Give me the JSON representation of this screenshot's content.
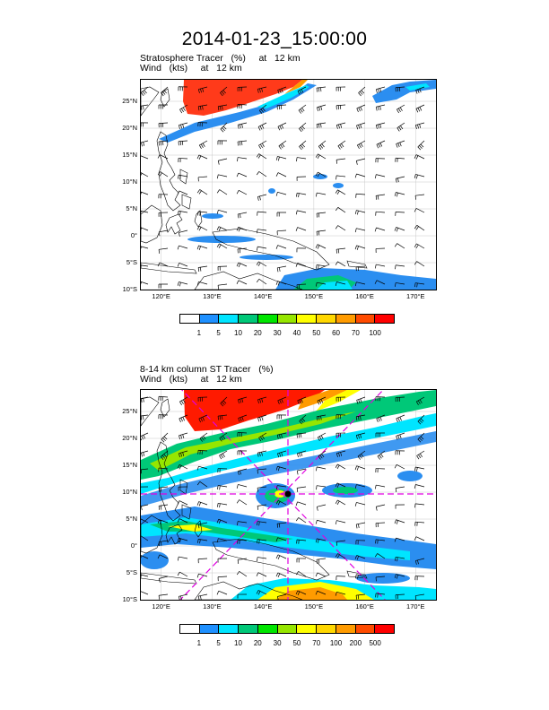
{
  "title": "2014-01-23_15:00:00",
  "panel1": {
    "line1": "Stratosphere Tracer   (%)     at   12 km",
    "line2": "Wind   (kts)     at   12 km",
    "colorbar_labels": [
      "1",
      "5",
      "10",
      "20",
      "30",
      "40",
      "50",
      "60",
      "70",
      "100"
    ],
    "colorbar_colors": [
      "#ffffff",
      "#1e90ff",
      "#00e5ff",
      "#00c878",
      "#00e600",
      "#96e600",
      "#ffff00",
      "#ffd700",
      "#ff9b00",
      "#ff4b00",
      "#ff0000"
    ]
  },
  "panel2": {
    "line1": "8-14 km column ST Tracer   (%)",
    "line2": "Wind   (kts)     at   12 km",
    "colorbar_labels": [
      "1",
      "5",
      "10",
      "20",
      "30",
      "50",
      "70",
      "100",
      "200",
      "500"
    ],
    "colorbar_colors": [
      "#ffffff",
      "#1e90ff",
      "#00e5ff",
      "#00c878",
      "#00e600",
      "#96e600",
      "#ffff00",
      "#ffd700",
      "#ff9b00",
      "#ff4b00",
      "#ff0000"
    ]
  },
  "lat_labels": [
    "25°N",
    "20°N",
    "15°N",
    "10°N",
    "5°N",
    "0°",
    "5°S",
    "10°S"
  ],
  "lon_labels": [
    "120°E",
    "130°E",
    "140°E",
    "150°E",
    "160°E",
    "170°E"
  ],
  "colors": {
    "cross_line": "#e000e0",
    "coast": "#000000",
    "grid": "#c8c8c8"
  }
}
